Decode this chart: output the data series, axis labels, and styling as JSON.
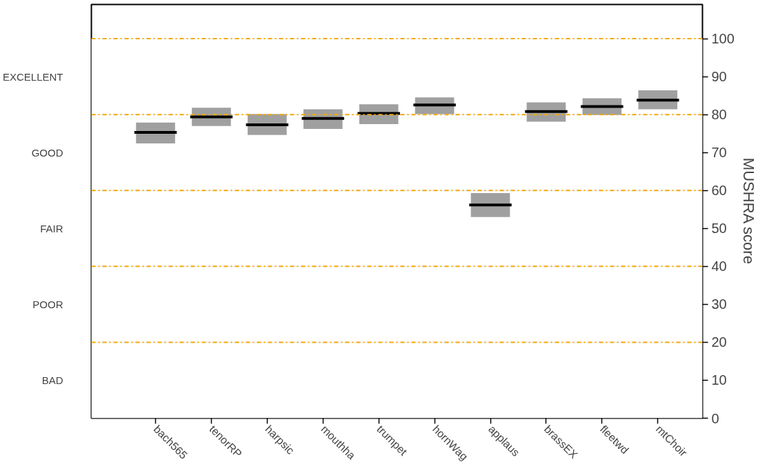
{
  "chart_data": {
    "type": "box",
    "categories": [
      "bach565",
      "tenorRP",
      "harpsic",
      "mouthha",
      "trumpet",
      "hornWag",
      "applaus",
      "brassEX",
      "fleetwd",
      "mtChoir"
    ],
    "boxes": [
      {
        "low": 72.4,
        "q1": 72.4,
        "median": 75.3,
        "q3": 77.9,
        "high": 77.9
      },
      {
        "low": 77.0,
        "q1": 77.0,
        "median": 79.4,
        "q3": 81.8,
        "high": 81.8
      },
      {
        "low": 74.6,
        "q1": 74.6,
        "median": 77.3,
        "q3": 80.1,
        "high": 80.1
      },
      {
        "low": 76.2,
        "q1": 76.2,
        "median": 79.0,
        "q3": 81.4,
        "high": 81.4
      },
      {
        "low": 77.5,
        "q1": 77.5,
        "median": 80.3,
        "q3": 82.7,
        "high": 82.7
      },
      {
        "low": 80.1,
        "q1": 80.1,
        "median": 82.5,
        "q3": 84.5,
        "high": 84.5
      },
      {
        "low": 53.0,
        "q1": 53.0,
        "median": 56.2,
        "q3": 59.3,
        "high": 59.3
      },
      {
        "low": 78.1,
        "q1": 78.1,
        "median": 80.8,
        "q3": 83.2,
        "high": 83.2
      },
      {
        "low": 79.9,
        "q1": 79.9,
        "median": 82.1,
        "q3": 84.3,
        "high": 84.3
      },
      {
        "low": 81.4,
        "q1": 81.4,
        "median": 83.8,
        "q3": 86.4,
        "high": 86.4
      }
    ],
    "color": "#a0a0a0",
    "ylim": [
      0,
      109
    ],
    "yticks": [
      0,
      10,
      20,
      30,
      40,
      50,
      60,
      70,
      80,
      90,
      100
    ],
    "ylabel": "MUSHRA score",
    "bands": [
      {
        "axis": "y",
        "from": 80,
        "to": 100,
        "label": "EXCELLENT",
        "color": "#ffffff"
      },
      {
        "axis": "y",
        "from": 60,
        "to": 80,
        "label": "GOOD",
        "color": "#ffffff"
      },
      {
        "axis": "y",
        "from": 40,
        "to": 60,
        "label": "FAIR",
        "color": "#ffffff"
      },
      {
        "axis": "y",
        "from": 20,
        "to": 40,
        "label": "POOR",
        "color": "#ffffff"
      },
      {
        "axis": "y",
        "from": 0,
        "to": 20,
        "label": "BAD",
        "color": "#ffffff"
      }
    ],
    "ref_lines": [
      {
        "axis": "y",
        "value": 100,
        "color": "#f5a800",
        "line_style": "dashdot"
      },
      {
        "axis": "y",
        "value": 80,
        "color": "#f5a800",
        "line_style": "dashdot"
      },
      {
        "axis": "y",
        "value": 60,
        "color": "#f5a800",
        "line_style": "dashdot"
      },
      {
        "axis": "y",
        "value": 40,
        "color": "#f5a800",
        "line_style": "dashdot"
      },
      {
        "axis": "y",
        "value": 20,
        "color": "#f5a800",
        "line_style": "dashdot"
      }
    ],
    "grid": false
  }
}
